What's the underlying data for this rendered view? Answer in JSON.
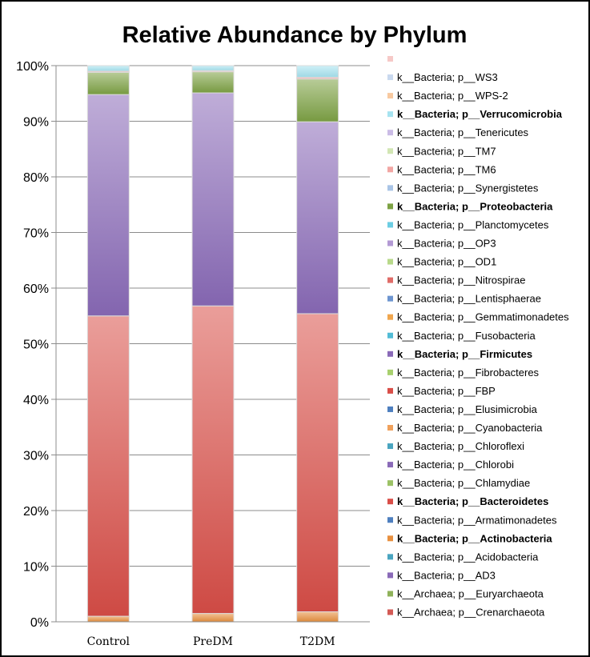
{
  "chart_data": {
    "type": "bar",
    "stacked": true,
    "title": "Relative Abundance by Phylum",
    "xlabel": "",
    "ylabel": "",
    "ylim": [
      0,
      100
    ],
    "yticks": [
      "0%",
      "10%",
      "20%",
      "30%",
      "40%",
      "50%",
      "60%",
      "70%",
      "80%",
      "90%",
      "100%"
    ],
    "categories": [
      "Control",
      "PreDM",
      "T2DM"
    ],
    "grid": true,
    "legend_position": "right",
    "series": [
      {
        "name": "k__Archaea; p__Crenarchaeota",
        "color": "#d35a55",
        "bold": false,
        "values": [
          0,
          0,
          0
        ]
      },
      {
        "name": "k__Archaea; p__Euryarchaeota",
        "color": "#8fb25a",
        "bold": false,
        "values": [
          0,
          0,
          0
        ]
      },
      {
        "name": "k__Bacteria; p__AD3",
        "color": "#8a6ab8",
        "bold": false,
        "values": [
          0,
          0,
          0
        ]
      },
      {
        "name": "k__Bacteria; p__Acidobacteria",
        "color": "#4aa5c0",
        "bold": false,
        "values": [
          0,
          0,
          0
        ]
      },
      {
        "name": "k__Bacteria; p__Actinobacteria",
        "color": "#e8903f",
        "bold": true,
        "values": [
          1.0,
          1.5,
          1.8
        ]
      },
      {
        "name": "k__Bacteria; p__Armatimonadetes",
        "color": "#4e7fbf",
        "bold": false,
        "values": [
          0,
          0,
          0
        ]
      },
      {
        "name": "k__Bacteria; p__Bacteroidetes",
        "color": "#d94e48",
        "bold": true,
        "values": [
          54.0,
          55.3,
          53.6
        ]
      },
      {
        "name": "k__Bacteria; p__Chlamydiae",
        "color": "#9cc266",
        "bold": false,
        "values": [
          0,
          0,
          0
        ]
      },
      {
        "name": "k__Bacteria; p__Chlorobi",
        "color": "#8a6ab8",
        "bold": false,
        "values": [
          0,
          0,
          0
        ]
      },
      {
        "name": "k__Bacteria; p__Chloroflexi",
        "color": "#4aa5c0",
        "bold": false,
        "values": [
          0,
          0,
          0
        ]
      },
      {
        "name": "k__Bacteria; p__Cyanobacteria",
        "color": "#f0a15c",
        "bold": false,
        "values": [
          0,
          0,
          0
        ]
      },
      {
        "name": "k__Bacteria; p__Elusimicrobia",
        "color": "#4e7fbf",
        "bold": false,
        "values": [
          0,
          0,
          0
        ]
      },
      {
        "name": "k__Bacteria; p__FBP",
        "color": "#d94e48",
        "bold": false,
        "values": [
          0,
          0,
          0
        ]
      },
      {
        "name": "k__Bacteria; p__Fibrobacteres",
        "color": "#a8d06e",
        "bold": false,
        "values": [
          0,
          0,
          0
        ]
      },
      {
        "name": "k__Bacteria; p__Firmicutes",
        "color": "#8a6ab8",
        "bold": true,
        "values": [
          39.8,
          38.3,
          34.5
        ]
      },
      {
        "name": "k__Bacteria; p__Fusobacteria",
        "color": "#52bcd6",
        "bold": false,
        "values": [
          0,
          0,
          0
        ]
      },
      {
        "name": "k__Bacteria; p__Gemmatimonadetes",
        "color": "#f0a64e",
        "bold": false,
        "values": [
          0,
          0,
          0
        ]
      },
      {
        "name": "k__Bacteria; p__Lentisphaerae",
        "color": "#6d95d0",
        "bold": false,
        "values": [
          0,
          0,
          0
        ]
      },
      {
        "name": "k__Bacteria; p__Nitrospirae",
        "color": "#e06c68",
        "bold": false,
        "values": [
          0,
          0,
          0
        ]
      },
      {
        "name": "k__Bacteria; p__OD1",
        "color": "#b8d98a",
        "bold": false,
        "values": [
          0,
          0,
          0
        ]
      },
      {
        "name": "k__Bacteria; p__OP3",
        "color": "#b39ad4",
        "bold": false,
        "values": [
          0,
          0,
          0
        ]
      },
      {
        "name": "k__Bacteria; p__Planctomycetes",
        "color": "#6ccde3",
        "bold": false,
        "values": [
          0,
          0,
          0
        ]
      },
      {
        "name": "k__Bacteria; p__Proteobacteria",
        "color": "#7da244",
        "bold": true,
        "values": [
          4.0,
          3.8,
          7.7
        ]
      },
      {
        "name": "k__Bacteria; p__Synergistetes",
        "color": "#a9c4e6",
        "bold": false,
        "values": [
          0,
          0,
          0
        ]
      },
      {
        "name": "k__Bacteria; p__TM6",
        "color": "#f2a6a3",
        "bold": false,
        "values": [
          0.2,
          0.2,
          0.3
        ]
      },
      {
        "name": "k__Bacteria; p__TM7",
        "color": "#d2e6b4",
        "bold": false,
        "values": [
          0,
          0,
          0
        ]
      },
      {
        "name": "k__Bacteria; p__Tenericutes",
        "color": "#cbbce6",
        "bold": false,
        "values": [
          0,
          0,
          0
        ]
      },
      {
        "name": "k__Bacteria; p__Verrucomicrobia",
        "color": "#a6e3f0",
        "bold": true,
        "values": [
          1.0,
          0.9,
          2.1
        ]
      },
      {
        "name": "k__Bacteria; p__WPS-2",
        "color": "#f8c9a0",
        "bold": false,
        "values": [
          0,
          0,
          0
        ]
      },
      {
        "name": "k__Bacteria; p__WS3",
        "color": "#c9d9ef",
        "bold": false,
        "values": [
          0,
          0,
          0
        ]
      },
      {
        "name": "",
        "color": "#f6c9c7",
        "bold": false,
        "values": [
          0,
          0,
          0
        ]
      }
    ]
  }
}
